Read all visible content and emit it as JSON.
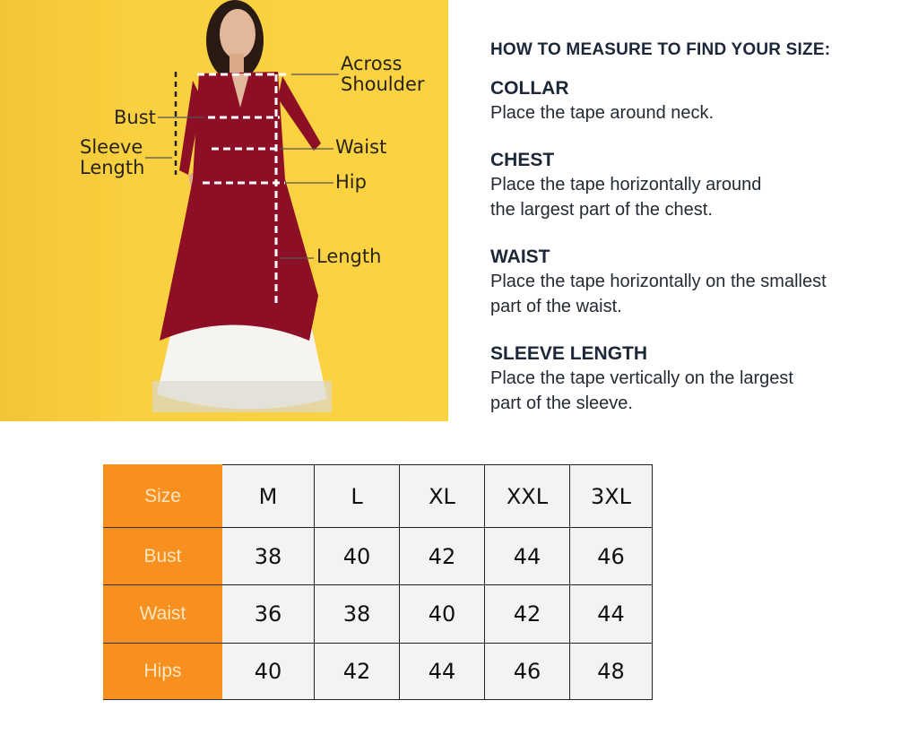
{
  "illustration": {
    "background_color": "#f9d03f",
    "garment_color": "#8c0f26",
    "labels": {
      "across_shoulder": [
        "Across",
        "Shoulder"
      ],
      "bust": "Bust",
      "sleeve_length": [
        "Sleeve",
        "Length"
      ],
      "waist": "Waist",
      "hip": "Hip",
      "length": "Length"
    }
  },
  "guide": {
    "heading": "HOW TO MEASURE TO FIND YOUR SIZE:",
    "sections": [
      {
        "title": "COLLAR",
        "lines": [
          "Place the tape around neck."
        ]
      },
      {
        "title": "CHEST",
        "lines": [
          "Place the tape horizontally around",
          "the largest part of the chest."
        ]
      },
      {
        "title": "WAIST",
        "lines": [
          "Place the tape horizontally on the smallest",
          "part of the waist."
        ]
      },
      {
        "title": "SLEEVE LENGTH",
        "lines": [
          "Place the tape vertically on the largest",
          "part of the sleeve."
        ]
      }
    ]
  },
  "size_table": {
    "header_color": "#f7901e",
    "columns": [
      "Size",
      "M",
      "L",
      "XL",
      "XXL",
      "3XL"
    ],
    "rows": [
      {
        "label": "Bust",
        "values": [
          "38",
          "40",
          "42",
          "44",
          "46"
        ]
      },
      {
        "label": "Waist",
        "values": [
          "36",
          "38",
          "40",
          "42",
          "44"
        ]
      },
      {
        "label": "Hips",
        "values": [
          "40",
          "42",
          "44",
          "46",
          "48"
        ]
      }
    ]
  }
}
